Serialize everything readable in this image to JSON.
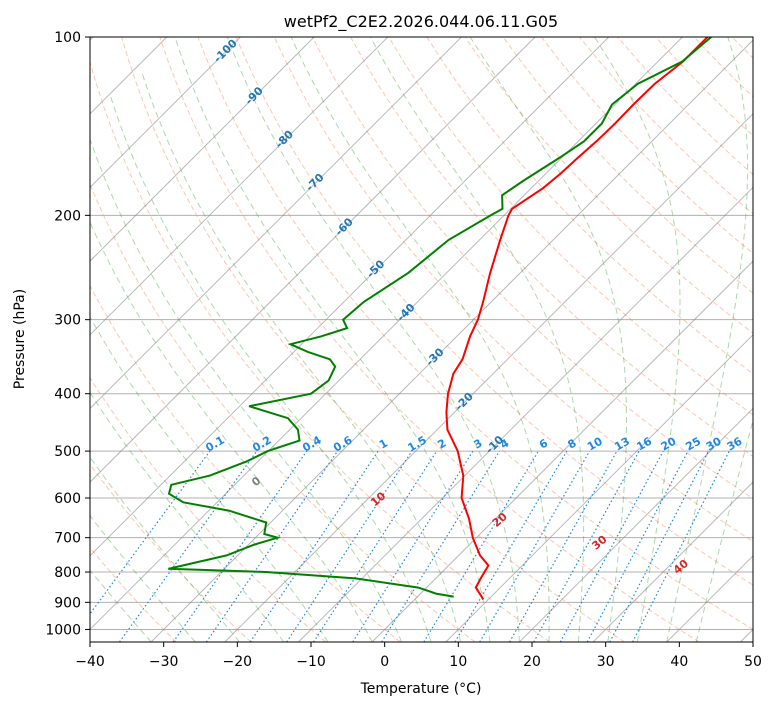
{
  "chart_data": {
    "type": "skew-t",
    "title": "wetPf2_C2E2.2026.044.06.11.G05",
    "xlabel": "Temperature (°C)",
    "ylabel": "Pressure (hPa)",
    "xlim": [
      -40,
      50
    ],
    "ylim": [
      1050,
      100
    ],
    "x_ticks": [
      "-40",
      "-30",
      "-20",
      "-10",
      "0",
      "10",
      "20",
      "30",
      "40",
      "50"
    ],
    "y_ticks": [
      "100",
      "200",
      "300",
      "400",
      "500",
      "600",
      "700",
      "800",
      "900",
      "1000"
    ],
    "colors": {
      "temperature": "#ff0000",
      "dewpoint": "#008000",
      "isotherm": "#808080",
      "dry_adiabat": "#ff7f50",
      "moist_adiabat": "#2ca02c",
      "mixing_ratio": "#1e88e5",
      "isotherm_label": "#1f77b4",
      "moist_label_red": "#d62728",
      "moist_label_gray": "#7f7f7f"
    },
    "isotherm_labels": [
      "-100",
      "-90",
      "-80",
      "-70",
      "-60",
      "-50",
      "-40",
      "-30",
      "-20",
      "-10"
    ],
    "mixing_ratio_labels": [
      "0.1",
      "0.2",
      "0.4",
      "0.6",
      "1",
      "1.5",
      "2",
      "3",
      "4",
      "6",
      "8",
      "10",
      "13",
      "16",
      "20",
      "25",
      "30",
      "36"
    ],
    "moist_adiabat_labels": [
      "0",
      "10",
      "20",
      "30",
      "40"
    ],
    "temperature_profile": [
      {
        "p": 100,
        "t": -36.6
      },
      {
        "p": 103,
        "t": -36.6
      },
      {
        "p": 110,
        "t": -36.6
      },
      {
        "p": 120,
        "t": -37.4
      },
      {
        "p": 130,
        "t": -37.5
      },
      {
        "p": 140,
        "t": -37.4
      },
      {
        "p": 150,
        "t": -37.5
      },
      {
        "p": 160,
        "t": -37.8
      },
      {
        "p": 170,
        "t": -38.0
      },
      {
        "p": 180,
        "t": -38.4
      },
      {
        "p": 195,
        "t": -39.8
      },
      {
        "p": 200,
        "t": -39.4
      },
      {
        "p": 220,
        "t": -37.2
      },
      {
        "p": 250,
        "t": -34.1
      },
      {
        "p": 280,
        "t": -31.1
      },
      {
        "p": 300,
        "t": -29.4
      },
      {
        "p": 320,
        "t": -28.2
      },
      {
        "p": 350,
        "t": -26.1
      },
      {
        "p": 370,
        "t": -25.4
      },
      {
        "p": 400,
        "t": -23.4
      },
      {
        "p": 430,
        "t": -21.1
      },
      {
        "p": 460,
        "t": -18.6
      },
      {
        "p": 500,
        "t": -14.3
      },
      {
        "p": 550,
        "t": -10.2
      },
      {
        "p": 600,
        "t": -7.4
      },
      {
        "p": 650,
        "t": -3.6
      },
      {
        "p": 700,
        "t": -0.5
      },
      {
        "p": 750,
        "t": 2.9
      },
      {
        "p": 780,
        "t": 5.4
      },
      {
        "p": 820,
        "t": 6.1
      },
      {
        "p": 850,
        "t": 6.7
      },
      {
        "p": 880,
        "t": 8.7
      },
      {
        "p": 890,
        "t": 9.3
      }
    ],
    "dewpoint_profile": [
      {
        "p": 100,
        "t": -36.1
      },
      {
        "p": 110,
        "t": -36.7
      },
      {
        "p": 120,
        "t": -39.7
      },
      {
        "p": 130,
        "t": -40.4
      },
      {
        "p": 140,
        "t": -39.2
      },
      {
        "p": 150,
        "t": -39.2
      },
      {
        "p": 160,
        "t": -40.3
      },
      {
        "p": 175,
        "t": -42.1
      },
      {
        "p": 185,
        "t": -43.0
      },
      {
        "p": 195,
        "t": -41.1
      },
      {
        "p": 200,
        "t": -41.8
      },
      {
        "p": 220,
        "t": -44.2
      },
      {
        "p": 250,
        "t": -45.2
      },
      {
        "p": 280,
        "t": -47.3
      },
      {
        "p": 300,
        "t": -47.7
      },
      {
        "p": 310,
        "t": -46.0
      },
      {
        "p": 320,
        "t": -48.4
      },
      {
        "p": 330,
        "t": -51.5
      },
      {
        "p": 340,
        "t": -48.1
      },
      {
        "p": 350,
        "t": -44.1
      },
      {
        "p": 360,
        "t": -42.4
      },
      {
        "p": 380,
        "t": -41.4
      },
      {
        "p": 400,
        "t": -42.0
      },
      {
        "p": 420,
        "t": -48.7
      },
      {
        "p": 440,
        "t": -41.8
      },
      {
        "p": 460,
        "t": -38.9
      },
      {
        "p": 480,
        "t": -37.2
      },
      {
        "p": 500,
        "t": -40.1
      },
      {
        "p": 520,
        "t": -41.5
      },
      {
        "p": 550,
        "t": -44.6
      },
      {
        "p": 570,
        "t": -48.6
      },
      {
        "p": 590,
        "t": -47.7
      },
      {
        "p": 610,
        "t": -44.6
      },
      {
        "p": 630,
        "t": -37.3
      },
      {
        "p": 660,
        "t": -30.6
      },
      {
        "p": 690,
        "t": -29.3
      },
      {
        "p": 700,
        "t": -27.0
      },
      {
        "p": 720,
        "t": -29.3
      },
      {
        "p": 750,
        "t": -31.5
      },
      {
        "p": 780,
        "t": -36.1
      },
      {
        "p": 790,
        "t": -37.6
      },
      {
        "p": 800,
        "t": -23.9
      },
      {
        "p": 820,
        "t": -10.9
      },
      {
        "p": 850,
        "t": -1.1
      },
      {
        "p": 870,
        "t": 2.1
      },
      {
        "p": 880,
        "t": 4.9
      }
    ]
  }
}
